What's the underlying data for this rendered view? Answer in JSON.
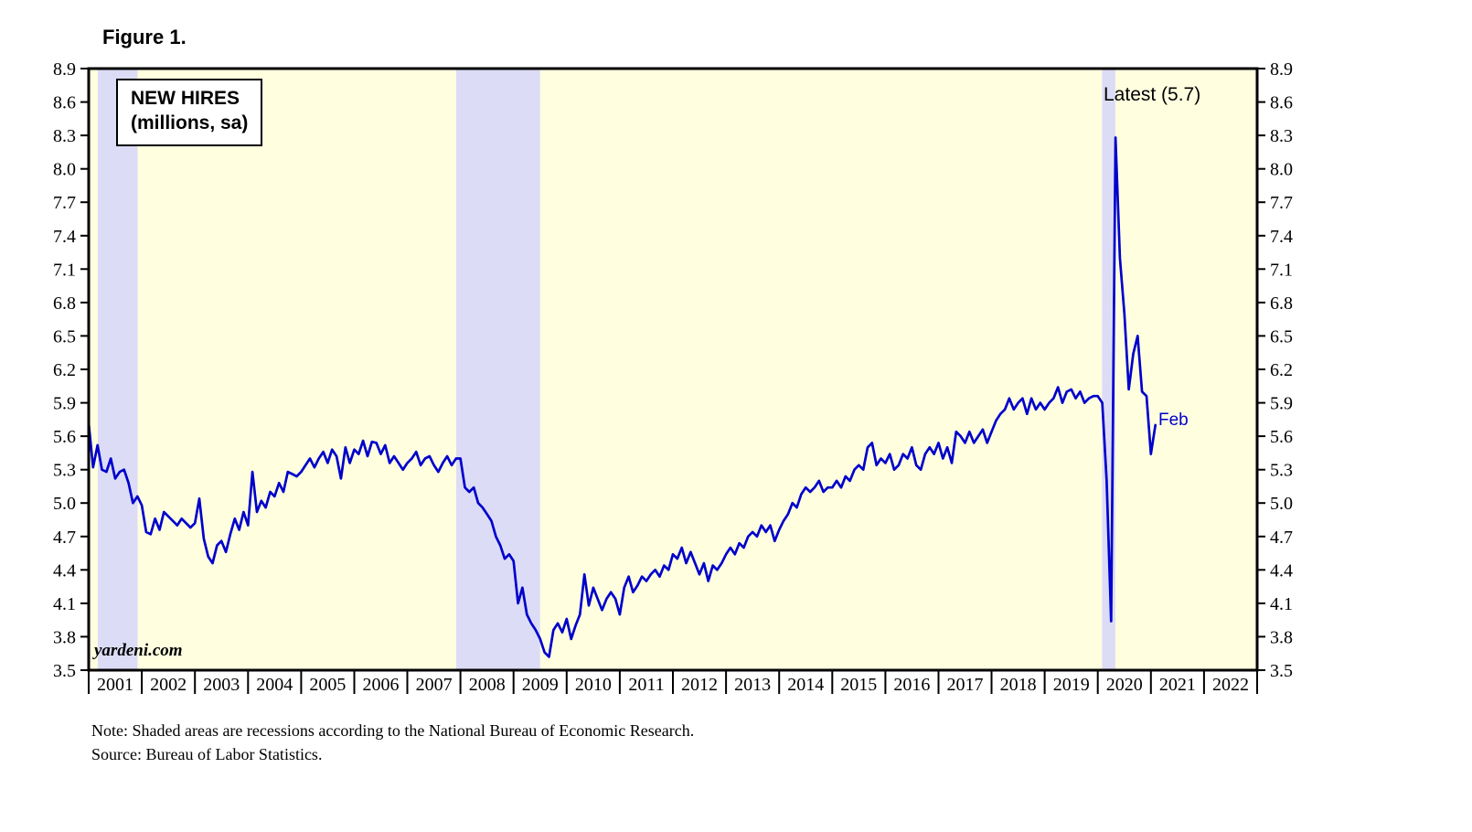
{
  "figure_label": "Figure 1.",
  "legend": {
    "line1": "NEW HIRES",
    "line2": "(millions, sa)"
  },
  "annotations": {
    "latest": "Latest (5.7)",
    "last_point": "Feb",
    "watermark": "yardeni.com"
  },
  "notes": [
    "Note: Shaded areas are recessions according to the National Bureau of Economic Research.",
    "Source: Bureau of Labor Statistics."
  ],
  "chart_data": {
    "type": "line",
    "title": "NEW HIRES (millions, sa)",
    "xlabel": "",
    "ylabel": "",
    "ylim": [
      3.5,
      8.9
    ],
    "yticks": [
      3.5,
      3.8,
      4.1,
      4.4,
      4.7,
      5.0,
      5.3,
      5.6,
      5.9,
      6.2,
      6.5,
      6.8,
      7.1,
      7.4,
      7.7,
      8.0,
      8.3,
      8.6,
      8.9
    ],
    "x_axis": {
      "start": 2001,
      "end": 2023
    },
    "year_labels": [
      "2001",
      "2002",
      "2003",
      "2004",
      "2005",
      "2006",
      "2007",
      "2008",
      "2009",
      "2010",
      "2011",
      "2012",
      "2013",
      "2014",
      "2015",
      "2016",
      "2017",
      "2018",
      "2019",
      "2020",
      "2021",
      "2022"
    ],
    "grid": false,
    "legend_position": "top-left",
    "recessions": [
      [
        2001.17,
        2001.92
      ],
      [
        2007.92,
        2009.5
      ],
      [
        2020.08,
        2020.33
      ]
    ],
    "series": [
      {
        "name": "New hires (millions, sa)",
        "frequency": "monthly",
        "start": "2001-01",
        "end": "2021-02",
        "latest_value": 5.7,
        "latest_month": "Feb",
        "values": [
          5.72,
          5.32,
          5.52,
          5.3,
          5.28,
          5.4,
          5.22,
          5.28,
          5.3,
          5.18,
          5.0,
          5.06,
          4.98,
          4.74,
          4.72,
          4.86,
          4.76,
          4.92,
          4.88,
          4.84,
          4.8,
          4.86,
          4.82,
          4.78,
          4.82,
          5.04,
          4.68,
          4.52,
          4.46,
          4.62,
          4.66,
          4.56,
          4.72,
          4.86,
          4.76,
          4.92,
          4.8,
          5.28,
          4.92,
          5.02,
          4.96,
          5.1,
          5.06,
          5.18,
          5.1,
          5.28,
          5.26,
          5.24,
          5.28,
          5.34,
          5.4,
          5.32,
          5.4,
          5.46,
          5.36,
          5.48,
          5.42,
          5.22,
          5.5,
          5.36,
          5.48,
          5.44,
          5.56,
          5.42,
          5.55,
          5.54,
          5.44,
          5.52,
          5.36,
          5.42,
          5.36,
          5.3,
          5.36,
          5.4,
          5.46,
          5.34,
          5.4,
          5.42,
          5.34,
          5.28,
          5.36,
          5.42,
          5.34,
          5.4,
          5.4,
          5.14,
          5.1,
          5.14,
          5.0,
          4.96,
          4.9,
          4.84,
          4.7,
          4.62,
          4.5,
          4.54,
          4.48,
          4.1,
          4.24,
          4.0,
          3.92,
          3.86,
          3.78,
          3.66,
          3.62,
          3.86,
          3.92,
          3.84,
          3.96,
          3.78,
          3.9,
          4.0,
          4.36,
          4.08,
          4.24,
          4.14,
          4.04,
          4.14,
          4.2,
          4.14,
          4.0,
          4.24,
          4.34,
          4.2,
          4.26,
          4.34,
          4.3,
          4.36,
          4.4,
          4.34,
          4.44,
          4.4,
          4.54,
          4.5,
          4.6,
          4.46,
          4.56,
          4.46,
          4.36,
          4.46,
          4.3,
          4.44,
          4.4,
          4.46,
          4.54,
          4.6,
          4.54,
          4.64,
          4.6,
          4.7,
          4.74,
          4.7,
          4.8,
          4.74,
          4.8,
          4.66,
          4.76,
          4.84,
          4.9,
          5.0,
          4.96,
          5.08,
          5.14,
          5.1,
          5.14,
          5.2,
          5.1,
          5.14,
          5.14,
          5.2,
          5.14,
          5.24,
          5.2,
          5.3,
          5.34,
          5.3,
          5.5,
          5.54,
          5.34,
          5.4,
          5.36,
          5.44,
          5.3,
          5.34,
          5.44,
          5.4,
          5.5,
          5.34,
          5.3,
          5.44,
          5.5,
          5.44,
          5.54,
          5.4,
          5.5,
          5.36,
          5.64,
          5.6,
          5.54,
          5.64,
          5.54,
          5.6,
          5.66,
          5.54,
          5.64,
          5.74,
          5.8,
          5.84,
          5.94,
          5.84,
          5.9,
          5.94,
          5.8,
          5.94,
          5.84,
          5.9,
          5.84,
          5.9,
          5.94,
          6.04,
          5.9,
          6.0,
          6.02,
          5.94,
          6.0,
          5.9,
          5.94,
          5.96,
          5.96,
          5.9,
          5.2,
          3.94,
          8.28,
          7.2,
          6.7,
          6.02,
          6.34,
          6.5,
          6.0,
          5.96,
          5.44,
          5.7
        ]
      }
    ],
    "colors": {
      "line": "#0000cc",
      "plot_bg": "#ffffe0",
      "recession": "#dcdcf6",
      "frame": "#000000",
      "tick_text": "#000000"
    }
  }
}
